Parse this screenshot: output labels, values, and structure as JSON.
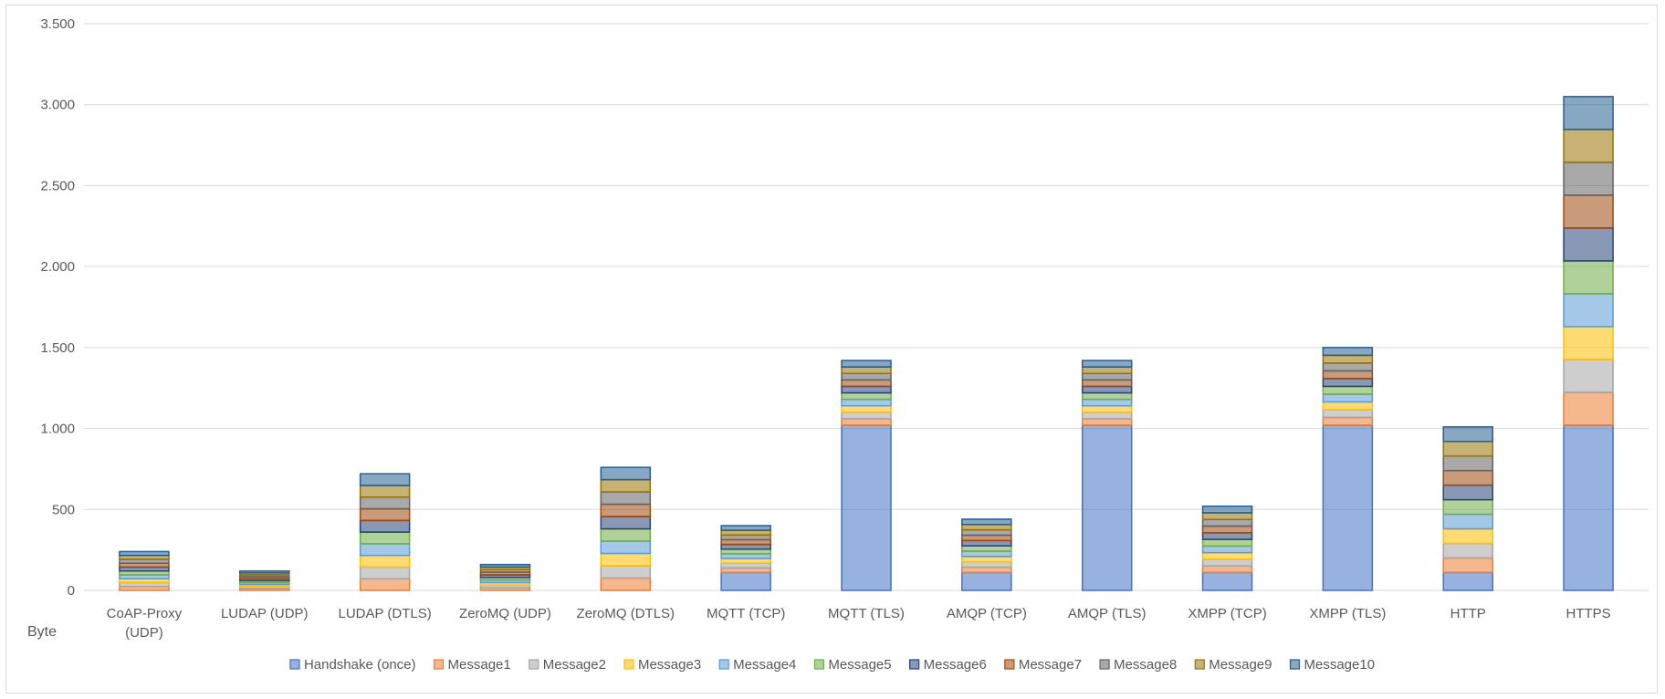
{
  "chart_data": {
    "type": "bar",
    "stacked": true,
    "title": "",
    "xlabel": "",
    "ylabel": "",
    "y_unit_label": "Byte",
    "ylim": [
      0,
      3500
    ],
    "yticks": [
      0,
      500,
      1000,
      1500,
      2000,
      2500,
      3000,
      3500
    ],
    "ytick_labels": [
      "0",
      "500",
      "1.000",
      "1.500",
      "2.000",
      "2.500",
      "3.000",
      "3.500"
    ],
    "grid": true,
    "legend_position": "bottom",
    "categories": [
      "CoAP-Proxy\n(UDP)",
      "LUDAP (UDP)",
      "LUDAP (DTLS)",
      "ZeroMQ (UDP)",
      "ZeroMQ (DTLS)",
      "MQTT (TCP)",
      "MQTT (TLS)",
      "AMQP (TCP)",
      "AMQP (TLS)",
      "XMPP (TCP)",
      "XMPP (TLS)",
      "HTTP",
      "HTTPS"
    ],
    "series": [
      {
        "name": "Handshake (once)",
        "color": "#4472c4",
        "values": [
          0,
          0,
          0,
          0,
          0,
          110,
          1020,
          110,
          1020,
          110,
          1020,
          110,
          1020
        ]
      },
      {
        "name": "Message1",
        "color": "#ed7d31",
        "values": [
          24,
          12,
          72,
          16,
          76,
          29,
          40,
          33,
          40,
          41,
          48,
          90,
          203
        ]
      },
      {
        "name": "Message2",
        "color": "#a5a5a5",
        "values": [
          24,
          12,
          72,
          16,
          76,
          29,
          40,
          33,
          40,
          41,
          48,
          90,
          203
        ]
      },
      {
        "name": "Message3",
        "color": "#ffc000",
        "values": [
          24,
          12,
          72,
          16,
          76,
          29,
          40,
          33,
          40,
          41,
          48,
          90,
          203
        ]
      },
      {
        "name": "Message4",
        "color": "#5b9bd5",
        "values": [
          24,
          12,
          72,
          16,
          76,
          29,
          40,
          33,
          40,
          41,
          48,
          90,
          203
        ]
      },
      {
        "name": "Message5",
        "color": "#70ad47",
        "values": [
          24,
          12,
          72,
          16,
          76,
          29,
          40,
          33,
          40,
          41,
          48,
          90,
          203
        ]
      },
      {
        "name": "Message6",
        "color": "#264478",
        "values": [
          24,
          12,
          72,
          16,
          76,
          29,
          40,
          33,
          40,
          41,
          48,
          90,
          203
        ]
      },
      {
        "name": "Message7",
        "color": "#9e480e",
        "values": [
          24,
          12,
          72,
          16,
          76,
          29,
          40,
          33,
          40,
          41,
          48,
          90,
          203
        ]
      },
      {
        "name": "Message8",
        "color": "#636363",
        "values": [
          24,
          12,
          72,
          16,
          76,
          29,
          40,
          33,
          40,
          41,
          48,
          90,
          203
        ]
      },
      {
        "name": "Message9",
        "color": "#997300",
        "values": [
          24,
          12,
          72,
          16,
          76,
          29,
          40,
          33,
          40,
          41,
          48,
          90,
          203
        ]
      },
      {
        "name": "Message10",
        "color": "#255e91",
        "values": [
          24,
          12,
          72,
          16,
          76,
          29,
          40,
          33,
          40,
          41,
          48,
          90,
          203
        ]
      }
    ]
  }
}
